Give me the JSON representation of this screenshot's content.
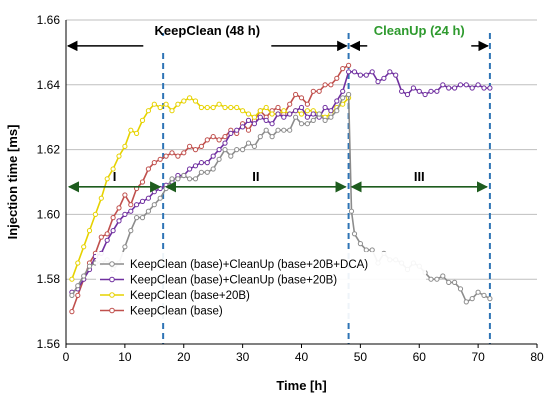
{
  "chart_data": {
    "type": "line",
    "xlabel": "Time [h]",
    "ylabel": "Injection time [ms]",
    "xlim": [
      0,
      80
    ],
    "ylim": [
      1.56,
      1.66
    ],
    "x_ticks": [
      "0",
      "10",
      "20",
      "30",
      "40",
      "50",
      "60",
      "70",
      "80"
    ],
    "y_ticks": [
      "1.56",
      "1.58",
      "1.60",
      "1.62",
      "1.64",
      "1.66"
    ],
    "grid": "horizontal",
    "legend": "bottom-center",
    "colors": {
      "phase_arrow": "#000000",
      "region_arrow": "#1e5c1e",
      "divider": "#2e74b5",
      "cleanup_label": "#2e9a2e"
    },
    "phases": [
      {
        "label": "KeepClean  (48 h)",
        "x_start": 0,
        "x_end": 48,
        "color": "#000000"
      },
      {
        "label": "CleanUp (24 h)",
        "x_start": 48,
        "x_end": 72,
        "color": "#2e9a2e"
      }
    ],
    "regions": [
      {
        "label": "I",
        "x_start": 0,
        "x_end": 16.5
      },
      {
        "label": "II",
        "x_start": 16.5,
        "x_end": 48
      },
      {
        "label": "III",
        "x_start": 48,
        "x_end": 72
      }
    ],
    "dividers": [
      16.5,
      48,
      72
    ],
    "series": [
      {
        "name": "KeepClean (base)+CleanUp (base+20B+DCA)",
        "color": "#8c8c8c",
        "x": [
          1,
          2,
          3,
          4,
          5,
          6,
          7,
          8,
          9,
          10,
          11,
          12,
          13,
          14,
          15,
          16,
          17,
          18,
          19,
          20,
          21,
          22,
          23,
          24,
          25,
          26,
          27,
          28,
          29,
          30,
          31,
          32,
          33,
          34,
          35,
          36,
          37,
          38,
          39,
          40,
          41,
          42,
          43,
          44,
          45,
          46,
          47,
          48,
          48.5,
          49,
          50,
          51,
          52,
          53,
          54,
          55,
          56,
          57,
          58,
          59,
          60,
          61,
          62,
          63,
          64,
          65,
          66,
          67,
          68,
          69,
          70,
          71,
          72
        ],
        "y": [
          1.575,
          1.578,
          1.581,
          1.584,
          1.585,
          1.585,
          1.586,
          1.583,
          1.585,
          1.59,
          1.595,
          1.599,
          1.599,
          1.601,
          1.603,
          1.605,
          1.608,
          1.611,
          1.611,
          1.612,
          1.611,
          1.611,
          1.613,
          1.613,
          1.614,
          1.617,
          1.62,
          1.618,
          1.62,
          1.62,
          1.622,
          1.621,
          1.624,
          1.626,
          1.624,
          1.626,
          1.626,
          1.626,
          1.63,
          1.628,
          1.628,
          1.629,
          1.631,
          1.629,
          1.63,
          1.632,
          1.636,
          1.637,
          1.601,
          1.594,
          1.591,
          1.589,
          1.589,
          1.585,
          1.588,
          1.586,
          1.586,
          1.585,
          1.583,
          1.585,
          1.584,
          1.582,
          1.58,
          1.58,
          1.581,
          1.579,
          1.579,
          1.577,
          1.573,
          1.574,
          1.576,
          1.575,
          1.574
        ]
      },
      {
        "name": "KeepClean (base)+CleanUp (base+20B)",
        "color": "#7030a0",
        "x": [
          1,
          2,
          3,
          4,
          5,
          6,
          7,
          8,
          9,
          10,
          11,
          12,
          13,
          14,
          15,
          16,
          17,
          18,
          19,
          20,
          21,
          22,
          23,
          24,
          25,
          26,
          27,
          28,
          29,
          30,
          31,
          32,
          33,
          34,
          35,
          36,
          37,
          38,
          39,
          40,
          41,
          42,
          43,
          44,
          45,
          46,
          47,
          48,
          49,
          50,
          51,
          52,
          53,
          54,
          55,
          56,
          57,
          58,
          59,
          60,
          61,
          62,
          63,
          64,
          65,
          66,
          67,
          68,
          69,
          70,
          71,
          72
        ],
        "y": [
          1.576,
          1.577,
          1.58,
          1.583,
          1.587,
          1.588,
          1.592,
          1.595,
          1.598,
          1.6,
          1.601,
          1.603,
          1.604,
          1.605,
          1.607,
          1.608,
          1.609,
          1.61,
          1.612,
          1.612,
          1.614,
          1.615,
          1.616,
          1.616,
          1.618,
          1.62,
          1.622,
          1.625,
          1.626,
          1.627,
          1.629,
          1.628,
          1.63,
          1.629,
          1.628,
          1.631,
          1.63,
          1.631,
          1.632,
          1.633,
          1.63,
          1.631,
          1.63,
          1.633,
          1.632,
          1.635,
          1.638,
          1.644,
          1.644,
          1.643,
          1.643,
          1.644,
          1.641,
          1.642,
          1.644,
          1.643,
          1.638,
          1.637,
          1.639,
          1.638,
          1.637,
          1.638,
          1.638,
          1.64,
          1.639,
          1.639,
          1.64,
          1.64,
          1.639,
          1.64,
          1.639,
          1.639
        ]
      },
      {
        "name": "KeepClean (base+20B)",
        "color": "#e6d200",
        "x": [
          1,
          2,
          3,
          4,
          5,
          6,
          7,
          8,
          9,
          10,
          11,
          12,
          13,
          14,
          15,
          16,
          17,
          18,
          19,
          20,
          21,
          22,
          23,
          24,
          25,
          26,
          27,
          28,
          29,
          30,
          31,
          32,
          33,
          34,
          35,
          36,
          37,
          38,
          39,
          40,
          41,
          42,
          43,
          44,
          45,
          46,
          47,
          48
        ],
        "y": [
          1.58,
          1.585,
          1.59,
          1.595,
          1.6,
          1.605,
          1.611,
          1.614,
          1.618,
          1.621,
          1.626,
          1.625,
          1.629,
          1.632,
          1.634,
          1.633,
          1.634,
          1.632,
          1.634,
          1.635,
          1.636,
          1.635,
          1.633,
          1.633,
          1.633,
          1.634,
          1.633,
          1.633,
          1.633,
          1.632,
          1.631,
          1.63,
          1.632,
          1.633,
          1.631,
          1.631,
          1.632,
          1.631,
          1.632,
          1.631,
          1.632,
          1.632,
          1.631,
          1.63,
          1.631,
          1.633,
          1.634,
          1.636
        ]
      },
      {
        "name": "KeepClean (base)",
        "color": "#c0504d",
        "x": [
          1,
          2,
          3,
          4,
          5,
          6,
          7,
          8,
          9,
          10,
          11,
          12,
          13,
          14,
          15,
          16,
          17,
          18,
          19,
          20,
          21,
          22,
          23,
          24,
          25,
          26,
          27,
          28,
          29,
          30,
          31,
          32,
          33,
          34,
          35,
          36,
          37,
          38,
          39,
          40,
          41,
          42,
          43,
          44,
          45,
          46,
          47,
          48
        ],
        "y": [
          1.57,
          1.575,
          1.58,
          1.585,
          1.588,
          1.593,
          1.594,
          1.599,
          1.602,
          1.606,
          1.603,
          1.608,
          1.61,
          1.614,
          1.616,
          1.617,
          1.618,
          1.619,
          1.618,
          1.619,
          1.621,
          1.62,
          1.621,
          1.623,
          1.624,
          1.623,
          1.624,
          1.626,
          1.625,
          1.628,
          1.626,
          1.629,
          1.632,
          1.63,
          1.632,
          1.633,
          1.631,
          1.634,
          1.637,
          1.636,
          1.634,
          1.638,
          1.638,
          1.64,
          1.64,
          1.642,
          1.645,
          1.646
        ]
      }
    ]
  }
}
